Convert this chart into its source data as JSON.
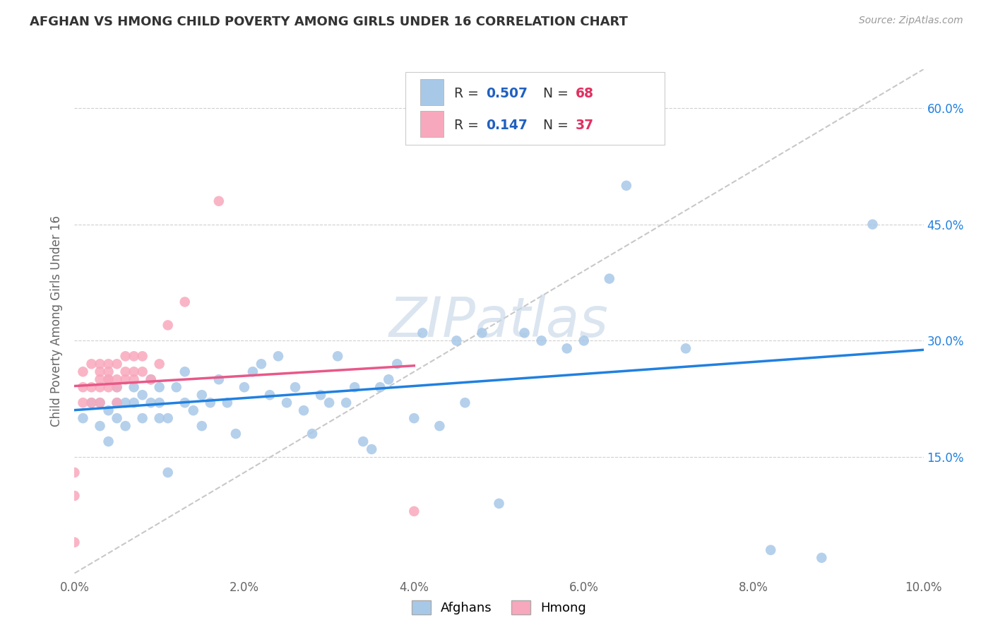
{
  "title": "AFGHAN VS HMONG CHILD POVERTY AMONG GIRLS UNDER 16 CORRELATION CHART",
  "source": "Source: ZipAtlas.com",
  "ylabel": "Child Poverty Among Girls Under 16",
  "xlim": [
    0.0,
    0.1
  ],
  "ylim": [
    0.0,
    0.65
  ],
  "xtick_labels": [
    "0.0%",
    "2.0%",
    "4.0%",
    "6.0%",
    "8.0%",
    "10.0%"
  ],
  "xtick_vals": [
    0.0,
    0.02,
    0.04,
    0.06,
    0.08,
    0.1
  ],
  "ytick_labels": [
    "15.0%",
    "30.0%",
    "45.0%",
    "60.0%"
  ],
  "ytick_vals": [
    0.15,
    0.3,
    0.45,
    0.6
  ],
  "afghan_color": "#a8c8e8",
  "hmong_color": "#f8a8bc",
  "line_blue": "#2080e0",
  "line_pink": "#e85888",
  "diagonal_color": "#c8c8c8",
  "watermark": "ZIPatlas",
  "watermark_color": "#c8d8e8",
  "legend_text_color": "#333333",
  "legend_R_N_color": "#2060c0",
  "legend_N_val_color": "#e03060",
  "afghan_x": [
    0.001,
    0.002,
    0.003,
    0.003,
    0.004,
    0.004,
    0.005,
    0.005,
    0.005,
    0.006,
    0.006,
    0.007,
    0.007,
    0.008,
    0.008,
    0.009,
    0.009,
    0.01,
    0.01,
    0.01,
    0.011,
    0.011,
    0.012,
    0.013,
    0.013,
    0.014,
    0.015,
    0.015,
    0.016,
    0.017,
    0.018,
    0.019,
    0.02,
    0.021,
    0.022,
    0.023,
    0.024,
    0.025,
    0.026,
    0.027,
    0.028,
    0.029,
    0.03,
    0.031,
    0.032,
    0.033,
    0.034,
    0.035,
    0.036,
    0.037,
    0.038,
    0.04,
    0.041,
    0.043,
    0.045,
    0.046,
    0.048,
    0.05,
    0.053,
    0.055,
    0.058,
    0.06,
    0.063,
    0.065,
    0.072,
    0.082,
    0.088,
    0.094
  ],
  "afghan_y": [
    0.2,
    0.22,
    0.19,
    0.22,
    0.21,
    0.17,
    0.2,
    0.22,
    0.24,
    0.19,
    0.22,
    0.22,
    0.24,
    0.2,
    0.23,
    0.22,
    0.25,
    0.2,
    0.22,
    0.24,
    0.13,
    0.2,
    0.24,
    0.22,
    0.26,
    0.21,
    0.19,
    0.23,
    0.22,
    0.25,
    0.22,
    0.18,
    0.24,
    0.26,
    0.27,
    0.23,
    0.28,
    0.22,
    0.24,
    0.21,
    0.18,
    0.23,
    0.22,
    0.28,
    0.22,
    0.24,
    0.17,
    0.16,
    0.24,
    0.25,
    0.27,
    0.2,
    0.31,
    0.19,
    0.3,
    0.22,
    0.31,
    0.09,
    0.31,
    0.3,
    0.29,
    0.3,
    0.38,
    0.5,
    0.29,
    0.03,
    0.02,
    0.45
  ],
  "hmong_x": [
    0.0,
    0.0,
    0.0,
    0.001,
    0.001,
    0.001,
    0.002,
    0.002,
    0.002,
    0.003,
    0.003,
    0.003,
    0.003,
    0.003,
    0.004,
    0.004,
    0.004,
    0.004,
    0.004,
    0.005,
    0.005,
    0.005,
    0.005,
    0.006,
    0.006,
    0.006,
    0.007,
    0.007,
    0.007,
    0.008,
    0.008,
    0.009,
    0.01,
    0.011,
    0.013,
    0.017,
    0.04
  ],
  "hmong_y": [
    0.04,
    0.1,
    0.13,
    0.22,
    0.24,
    0.26,
    0.22,
    0.24,
    0.27,
    0.22,
    0.24,
    0.25,
    0.26,
    0.27,
    0.24,
    0.25,
    0.25,
    0.26,
    0.27,
    0.22,
    0.24,
    0.25,
    0.27,
    0.25,
    0.26,
    0.28,
    0.25,
    0.26,
    0.28,
    0.26,
    0.28,
    0.25,
    0.27,
    0.32,
    0.35,
    0.48,
    0.08
  ]
}
